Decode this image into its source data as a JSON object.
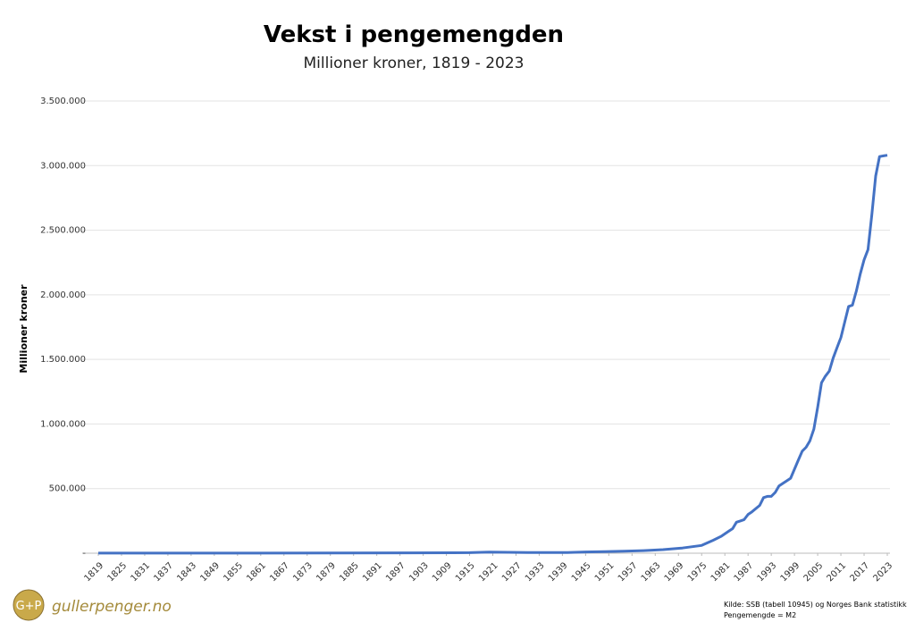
{
  "chart_data": {
    "type": "line",
    "title": "Vekst i pengemengden",
    "subtitle": "Millioner kroner, 1819 - 2023",
    "y_label": "Millioner kroner",
    "source": [
      "Kilde: SSB (tabell 10945) og Norges Bank statistikk",
      "Pengemengde = M2"
    ],
    "logo": {
      "mark": "G+P",
      "text": "gullerpenger.no"
    },
    "xlim": [
      1819,
      2023
    ],
    "xticks": [
      1819,
      1825,
      1831,
      1837,
      1843,
      1849,
      1855,
      1861,
      1867,
      1873,
      1879,
      1885,
      1891,
      1897,
      1903,
      1909,
      1915,
      1921,
      1927,
      1933,
      1939,
      1945,
      1951,
      1957,
      1963,
      1969,
      1975,
      1981,
      1987,
      1993,
      1999,
      2005,
      2011,
      2017,
      2023
    ],
    "ylim": [
      0,
      3500000
    ],
    "yticks": [
      {
        "value": 0,
        "label": "-"
      },
      {
        "value": 500000,
        "label": "500.000"
      },
      {
        "value": 1000000,
        "label": "1.000.000"
      },
      {
        "value": 1500000,
        "label": "1.500.000"
      },
      {
        "value": 2000000,
        "label": "2.000.000"
      },
      {
        "value": 2500000,
        "label": "2.500.000"
      },
      {
        "value": 3000000,
        "label": "3.000.000"
      },
      {
        "value": 3500000,
        "label": "3.500.000"
      }
    ],
    "grid": true,
    "series": [
      {
        "name": "Pengemengde",
        "color": "#4472c4",
        "x": [
          1819,
          1840,
          1860,
          1880,
          1900,
          1915,
          1920,
          1930,
          1940,
          1945,
          1950,
          1955,
          1960,
          1965,
          1970,
          1975,
          1978,
          1980,
          1982,
          1983,
          1984,
          1985,
          1986,
          1987,
          1988,
          1990,
          1991,
          1992,
          1993,
          1994,
          1995,
          1996,
          1997,
          1998,
          1999,
          2000,
          2001,
          2002,
          2003,
          2004,
          2005,
          2006,
          2007,
          2008,
          2009,
          2010,
          2011,
          2012,
          2013,
          2014,
          2015,
          2016,
          2017,
          2018,
          2019,
          2020,
          2021,
          2022,
          2023
        ],
        "values": [
          500,
          700,
          1000,
          1500,
          3000,
          4000,
          8000,
          5000,
          5000,
          10000,
          12000,
          15000,
          20000,
          28000,
          40000,
          60000,
          100000,
          130000,
          170000,
          190000,
          240000,
          250000,
          260000,
          300000,
          320000,
          370000,
          430000,
          440000,
          440000,
          470000,
          520000,
          540000,
          560000,
          580000,
          650000,
          720000,
          790000,
          820000,
          870000,
          960000,
          1130000,
          1320000,
          1370000,
          1410000,
          1510000,
          1590000,
          1670000,
          1790000,
          1910000,
          1920000,
          2030000,
          2160000,
          2270000,
          2350000,
          2620000,
          2920000,
          3070000,
          3075000,
          3080000
        ]
      }
    ]
  }
}
